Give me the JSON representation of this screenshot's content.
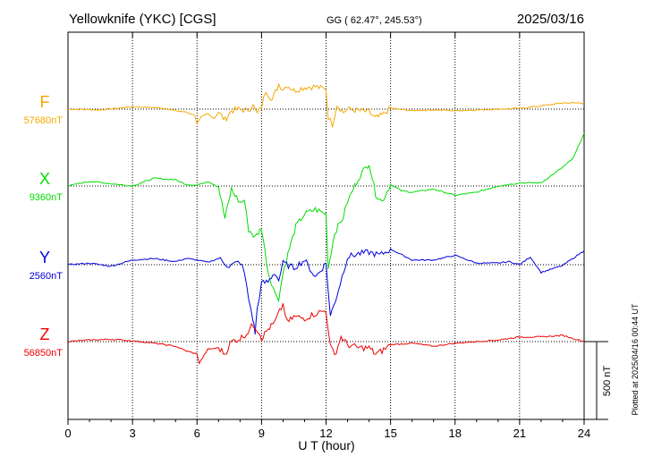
{
  "header": {
    "station": "Yellowknife (YKC)  [CGS]",
    "coords": "GG ( 62.47°, 245.53°)",
    "date": "2025/03/16"
  },
  "footer_note": "Plotted at 2025/04/16 00:44 UT",
  "scale_label": "500 nT",
  "colors": {
    "F": "#f5a800",
    "X": "#00dd00",
    "Y": "#0000dd",
    "Z": "#ee0000",
    "axis": "#000000"
  },
  "chart_data": {
    "type": "line",
    "xlabel": "U T (hour)",
    "xlim": [
      0,
      24
    ],
    "xticks": [
      0,
      3,
      6,
      9,
      12,
      15,
      18,
      21,
      24
    ],
    "scale_bar_nT": 500,
    "series": [
      {
        "name": "F",
        "baseline_label": "57680nT",
        "color": "#f5a800",
        "x": [
          0,
          1.5,
          3,
          4,
          4.5,
          5,
          5.5,
          5.9,
          6.0,
          6.2,
          6.5,
          6.8,
          7.0,
          7.3,
          7.6,
          8.0,
          8.3,
          8.6,
          8.8,
          9.0,
          9.2,
          9.5,
          9.8,
          10.0,
          10.2,
          10.5,
          11.0,
          11.5,
          12.0,
          12.1,
          12.3,
          12.5,
          12.8,
          13.0,
          13.5,
          14.0,
          14.3,
          14.6,
          15.0,
          16.0,
          17.0,
          18.0,
          19.0,
          20.0,
          21.0,
          22.0,
          23.0,
          24.0
        ],
        "values": [
          0,
          -5,
          15,
          10,
          5,
          -10,
          -20,
          -40,
          -95,
          -50,
          -30,
          -60,
          -20,
          -70,
          -10,
          0,
          -10,
          20,
          -30,
          15,
          120,
          60,
          160,
          130,
          155,
          120,
          140,
          145,
          125,
          -50,
          -100,
          30,
          -20,
          0,
          -10,
          -20,
          -60,
          -40,
          5,
          -10,
          -5,
          -10,
          -5,
          0,
          5,
          20,
          40,
          40
        ]
      },
      {
        "name": "X",
        "baseline_label": "9360nT",
        "color": "#00dd00",
        "x": [
          0,
          1,
          2,
          3,
          4,
          5,
          5.5,
          6.0,
          6.5,
          7.0,
          7.3,
          7.6,
          8.0,
          8.2,
          8.4,
          8.7,
          9.0,
          9.3,
          9.6,
          9.8,
          10.0,
          10.3,
          10.6,
          11.0,
          11.5,
          12.0,
          12.1,
          12.4,
          12.8,
          13.0,
          13.5,
          14.0,
          14.3,
          14.6,
          15.0,
          15.5,
          16.0,
          17.0,
          18.0,
          19.0,
          20.0,
          21.0,
          22.0,
          23.0,
          23.5,
          24.0
        ],
        "values": [
          0,
          30,
          15,
          0,
          50,
          40,
          10,
          5,
          30,
          -5,
          -210,
          -20,
          -110,
          -90,
          -280,
          -330,
          -270,
          -550,
          -680,
          -720,
          -560,
          -400,
          -260,
          -180,
          -150,
          -180,
          -530,
          -300,
          -200,
          -100,
          50,
          150,
          -50,
          -100,
          10,
          -30,
          -40,
          -20,
          -60,
          -40,
          0,
          20,
          20,
          120,
          180,
          340
        ]
      },
      {
        "name": "Y",
        "baseline_label": "2560nT",
        "color": "#0000dd",
        "x": [
          0,
          1,
          2,
          3,
          4,
          5,
          5.5,
          6.0,
          6.5,
          7.0,
          7.5,
          8.0,
          8.2,
          8.4,
          8.6,
          8.7,
          8.8,
          9.0,
          9.3,
          9.6,
          9.8,
          10.0,
          10.5,
          11.0,
          11.5,
          12.0,
          12.2,
          12.5,
          13.0,
          13.5,
          14.0,
          14.5,
          15.0,
          16.0,
          17.0,
          18.0,
          19.0,
          20.0,
          20.5,
          21.0,
          21.5,
          22.0,
          23.0,
          24.0
        ],
        "values": [
          0,
          10,
          -10,
          30,
          40,
          20,
          40,
          30,
          15,
          40,
          -10,
          20,
          -50,
          -220,
          -350,
          -440,
          -280,
          -120,
          -110,
          -50,
          -100,
          10,
          -20,
          30,
          -80,
          10,
          -330,
          -200,
          50,
          70,
          80,
          60,
          100,
          30,
          30,
          60,
          10,
          10,
          20,
          0,
          50,
          -50,
          -5,
          90
        ]
      },
      {
        "name": "Z",
        "baseline_label": "56850nT",
        "color": "#ee0000",
        "x": [
          0,
          1,
          2,
          3,
          4,
          5,
          5.5,
          6.0,
          6.1,
          6.5,
          7.0,
          7.3,
          7.6,
          8.0,
          8.3,
          8.6,
          8.9,
          9.0,
          9.3,
          9.6,
          10.0,
          10.2,
          10.5,
          11.0,
          11.5,
          12.0,
          12.2,
          12.4,
          12.7,
          13.0,
          13.5,
          14.0,
          14.3,
          14.6,
          15.0,
          16.0,
          17.0,
          18.0,
          19.0,
          20.0,
          21.0,
          22.0,
          23.0,
          24.0
        ],
        "values": [
          0,
          10,
          15,
          5,
          -10,
          -30,
          -60,
          -80,
          -140,
          -50,
          -40,
          -80,
          0,
          20,
          50,
          110,
          60,
          20,
          80,
          120,
          240,
          120,
          160,
          150,
          180,
          200,
          -30,
          -90,
          30,
          -20,
          -40,
          -40,
          -80,
          -60,
          -20,
          -10,
          -30,
          -10,
          0,
          10,
          30,
          30,
          40,
          0
        ]
      }
    ]
  }
}
